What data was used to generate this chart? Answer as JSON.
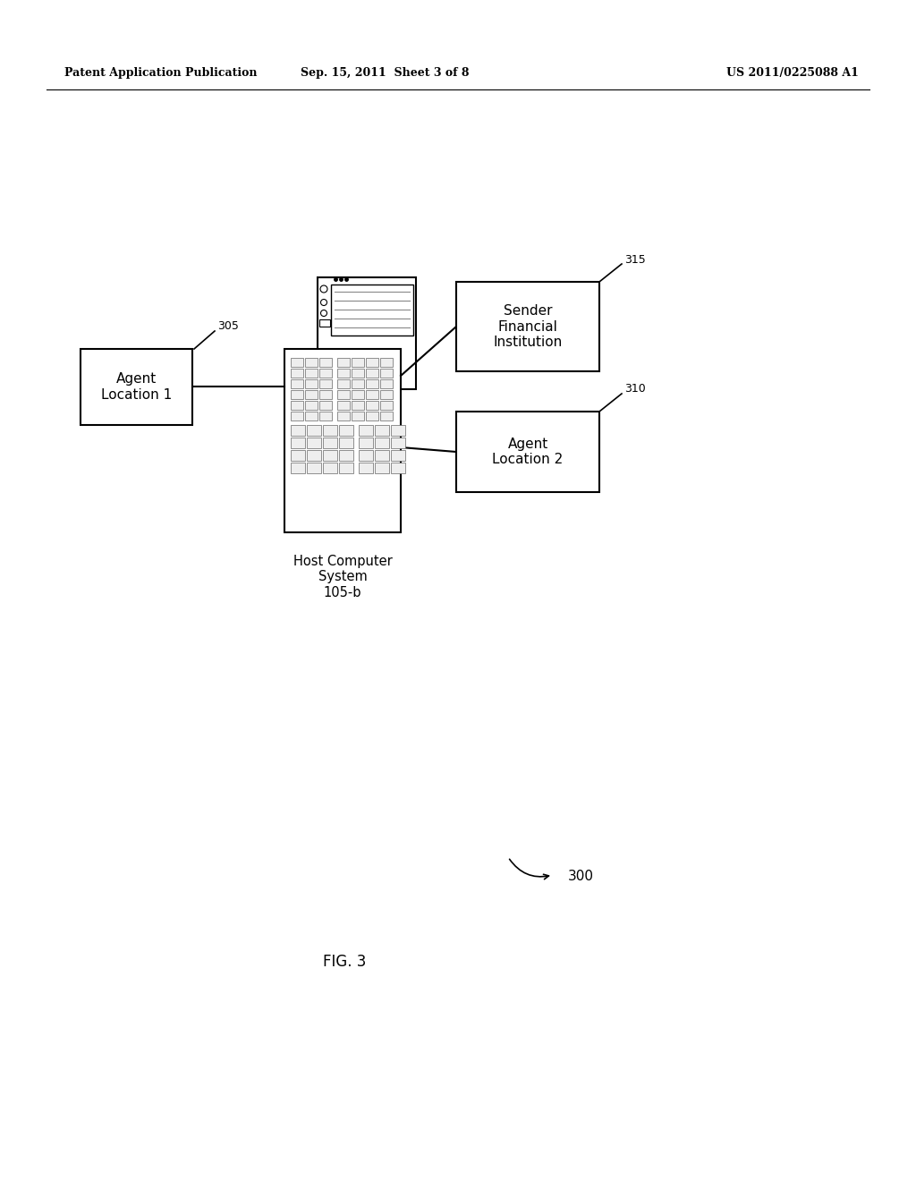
{
  "bg_color": "#ffffff",
  "header_left": "Patent Application Publication",
  "header_mid": "Sep. 15, 2011  Sheet 3 of 8",
  "header_right": "US 2011/0225088 A1",
  "fig_label": "FIG. 3",
  "diagram_number": "300",
  "agent1_label": "Agent\nLocation 1",
  "agent1_ref": "305",
  "host_label": "Host Computer\nSystem\n105-b",
  "sender_label": "Sender\nFinancial\nInstitution",
  "sender_ref": "315",
  "agent2_label": "Agent\nLocation 2",
  "agent2_ref": "310"
}
